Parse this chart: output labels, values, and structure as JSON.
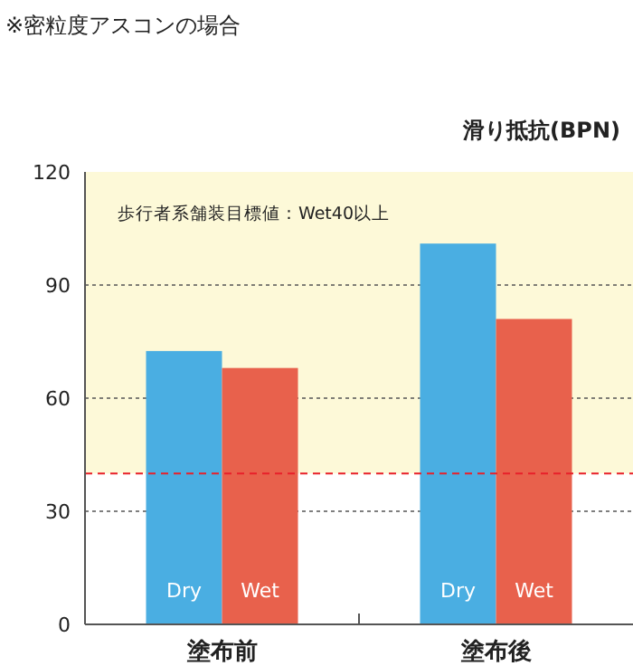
{
  "chart_data": {
    "type": "bar",
    "title": "※密粒度アスコンの場合",
    "ylabel": "滑り抵抗(BPN)",
    "categories": [
      "塗布前",
      "塗布後"
    ],
    "series": [
      {
        "name": "Dry",
        "color": "#4aaee2",
        "values": [
          72.5,
          101
        ]
      },
      {
        "name": "Wet",
        "color": "#e8614c",
        "values": [
          68,
          81
        ]
      }
    ],
    "ylim": [
      0,
      120
    ],
    "yticks": [
      0,
      30,
      60,
      90,
      120
    ],
    "grid": "y",
    "ref_lines": [
      {
        "axis": "y",
        "value": 40,
        "color": "#e8202a",
        "line_style": "dashed"
      }
    ],
    "bands": [
      {
        "axis": "y",
        "from": 40,
        "to": 120,
        "label": "歩行者系舗装目標値：Wet40以上",
        "color": "#fdf9d8"
      }
    ]
  }
}
